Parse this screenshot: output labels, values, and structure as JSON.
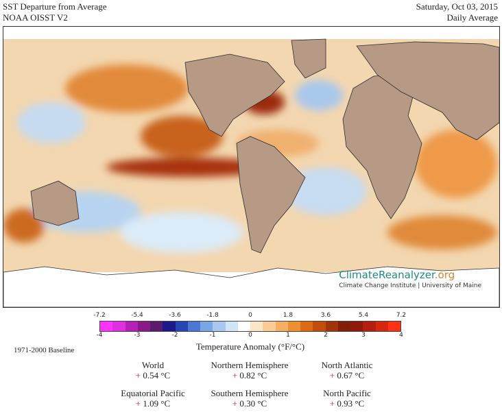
{
  "header": {
    "title": "SST Departure from Average",
    "dataset": "NOAA OISST V2",
    "date": "Saturday, Oct 03, 2015",
    "period": "Daily Average"
  },
  "branding": {
    "name_part1": "ClimateReanalyzer",
    "name_part2": ".org",
    "affiliation": "Climate Change Institute | University of Maine"
  },
  "legend": {
    "fahrenheit_ticks": [
      "-7.2",
      "-5.4",
      "-3.6",
      "-1.8",
      "0",
      "1.8",
      "3.6",
      "5.4",
      "7.2"
    ],
    "celsius_ticks": [
      "-4",
      "-3",
      "-2",
      "-1",
      "0",
      "1",
      "2",
      "3",
      "4"
    ],
    "title": "Temperature Anomaly (°F/°C)",
    "baseline": "1971-2000 Baseline",
    "colors": [
      "#ff33ff",
      "#e02ee0",
      "#b81fb8",
      "#8a1a8a",
      "#5a1a6e",
      "#1a1a8c",
      "#2646b4",
      "#4a78d2",
      "#78a6e6",
      "#a8c8f2",
      "#d2e4f8",
      "#ffffff",
      "#fce6c8",
      "#f8cc94",
      "#f4b060",
      "#ec9032",
      "#dc6c14",
      "#c44c0a",
      "#a23208",
      "#821e06",
      "#901a0a",
      "#b41e0e",
      "#d8260e",
      "#ff3014"
    ]
  },
  "stats": [
    {
      "label": "World",
      "sign": "+",
      "value": "0.54 °C"
    },
    {
      "label": "Northern Hemisphere",
      "sign": "+",
      "value": "0.82 °C"
    },
    {
      "label": "North Atlantic",
      "sign": "+",
      "value": "0.67 °C"
    },
    {
      "label": "Equatorial Pacific",
      "sign": "+",
      "value": "1.09 °C"
    },
    {
      "label": "Southern Hemisphere",
      "sign": "+",
      "value": "0.30 °C"
    },
    {
      "label": "North Pacific",
      "sign": "+",
      "value": "0.93 °C"
    }
  ]
}
